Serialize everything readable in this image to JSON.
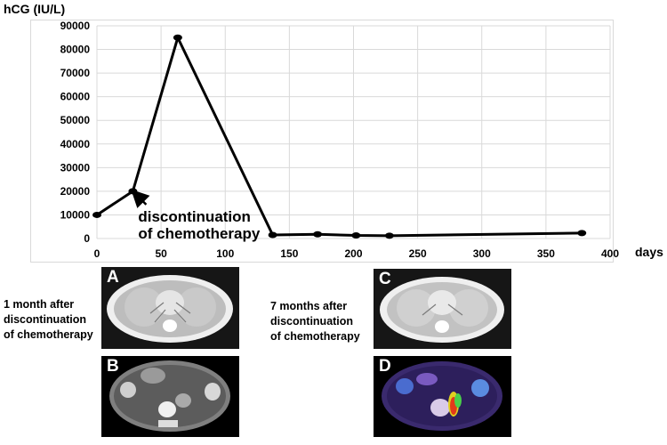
{
  "chart_data": {
    "type": "line",
    "ylabel": "hCG (IU/L)",
    "xlabel": "days",
    "xlim": [
      0,
      400
    ],
    "ylim": [
      0,
      90000
    ],
    "x_ticks": [
      "0",
      "50",
      "100",
      "150",
      "200",
      "250",
      "300",
      "350",
      "400"
    ],
    "y_ticks": [
      "0",
      "10000",
      "20000",
      "30000",
      "40000",
      "50000",
      "60000",
      "70000",
      "80000",
      "90000"
    ],
    "grid": true,
    "series": [
      {
        "x": [
          0,
          28,
          63,
          137,
          172,
          202,
          228,
          378
        ],
        "values": [
          10000,
          20000,
          85000,
          1500,
          1800,
          1300,
          1200,
          2300
        ]
      }
    ],
    "annotation": {
      "line1": "discontinuation",
      "line2": "of chemotherapy",
      "x": 28,
      "y": 20000
    }
  },
  "panels": {
    "left_caption": [
      "1 month after",
      "discontinuation",
      "of chemotherapy"
    ],
    "right_caption": [
      "7 months after",
      "discontinuation",
      "of chemotherapy"
    ],
    "letters": {
      "a": "A",
      "b": "B",
      "c": "C",
      "d": "D"
    }
  }
}
